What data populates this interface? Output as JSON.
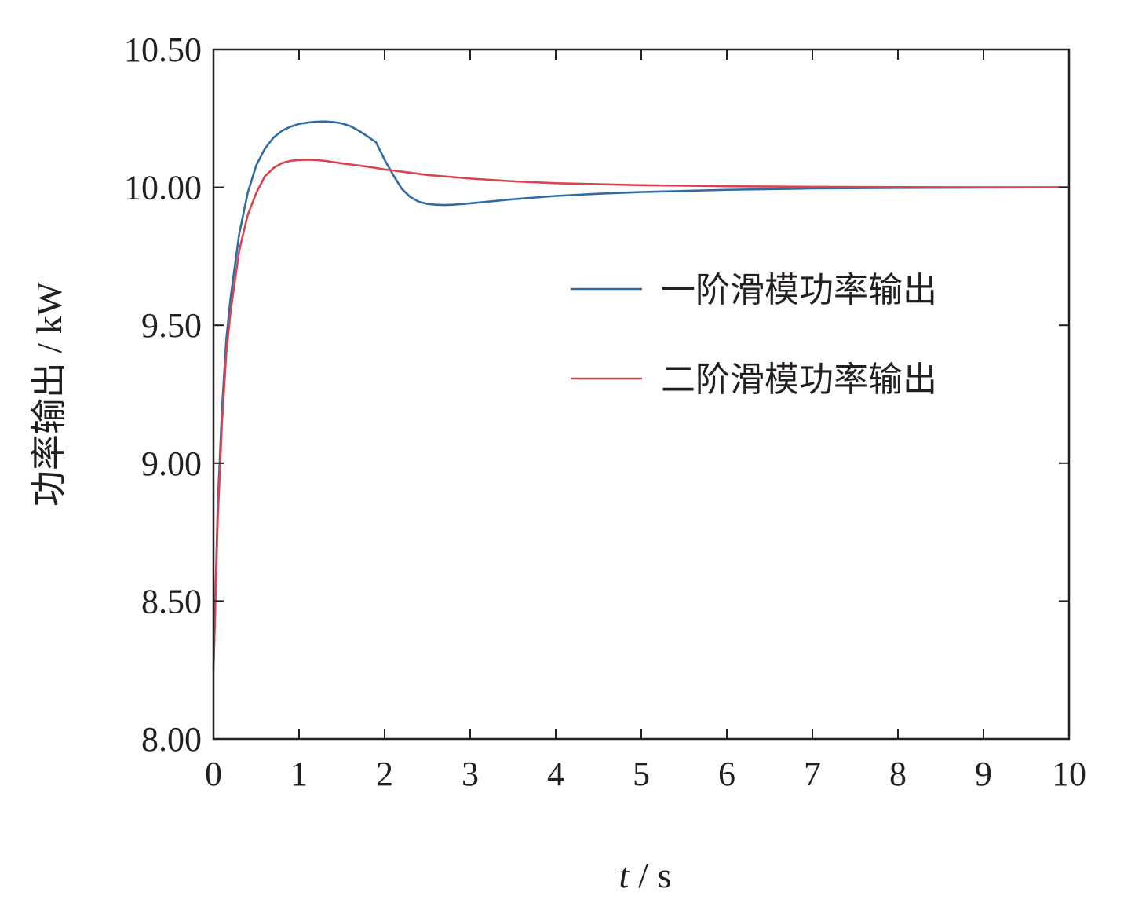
{
  "chart_data": {
    "type": "line",
    "xlabel_var": "t",
    "xlabel_unit": "/ s",
    "ylabel": "功率输出 / kW",
    "xlim": [
      0,
      10
    ],
    "ylim": [
      8.0,
      10.5
    ],
    "xticks": [
      "0",
      "1",
      "2",
      "3",
      "4",
      "5",
      "6",
      "7",
      "8",
      "9",
      "10"
    ],
    "yticks": [
      "8.00",
      "8.50",
      "9.00",
      "9.50",
      "10.00",
      "10.50"
    ],
    "grid": false,
    "legend_position": "right",
    "series": [
      {
        "name": "一阶滑模功率输出",
        "color": "#2e6ca8",
        "x": [
          0,
          0.05,
          0.1,
          0.15,
          0.2,
          0.3,
          0.4,
          0.5,
          0.6,
          0.7,
          0.8,
          0.9,
          1.0,
          1.1,
          1.2,
          1.3,
          1.4,
          1.5,
          1.6,
          1.7,
          1.8,
          1.9,
          2.0,
          2.1,
          2.2,
          2.3,
          2.4,
          2.5,
          2.6,
          2.7,
          2.8,
          3.0,
          3.5,
          4.0,
          4.5,
          5.0,
          6.0,
          7.0,
          8.0,
          9.0,
          10.0
        ],
        "y": [
          8.25,
          8.85,
          9.2,
          9.45,
          9.6,
          9.83,
          9.98,
          10.08,
          10.14,
          10.18,
          10.205,
          10.22,
          10.23,
          10.235,
          10.238,
          10.239,
          10.237,
          10.232,
          10.222,
          10.205,
          10.185,
          10.163,
          10.1,
          10.045,
          9.995,
          9.965,
          9.948,
          9.94,
          9.937,
          9.936,
          9.937,
          9.942,
          9.957,
          9.969,
          9.977,
          9.983,
          9.991,
          9.996,
          9.998,
          9.999,
          10.0
        ]
      },
      {
        "name": "二阶滑模功率输出",
        "color": "#d9434f",
        "x": [
          0,
          0.05,
          0.1,
          0.15,
          0.2,
          0.3,
          0.4,
          0.5,
          0.6,
          0.7,
          0.8,
          0.9,
          1.0,
          1.1,
          1.2,
          1.3,
          1.5,
          1.8,
          2.0,
          2.5,
          3.0,
          3.5,
          4.0,
          5.0,
          6.0,
          7.0,
          8.0,
          9.0,
          10.0
        ],
        "y": [
          8.25,
          8.8,
          9.15,
          9.4,
          9.55,
          9.77,
          9.9,
          9.98,
          10.04,
          10.07,
          10.088,
          10.096,
          10.099,
          10.1,
          10.099,
          10.096,
          10.087,
          10.075,
          10.065,
          10.045,
          10.032,
          10.022,
          10.015,
          10.008,
          10.004,
          10.002,
          10.001,
          10.0,
          10.0
        ]
      }
    ]
  }
}
